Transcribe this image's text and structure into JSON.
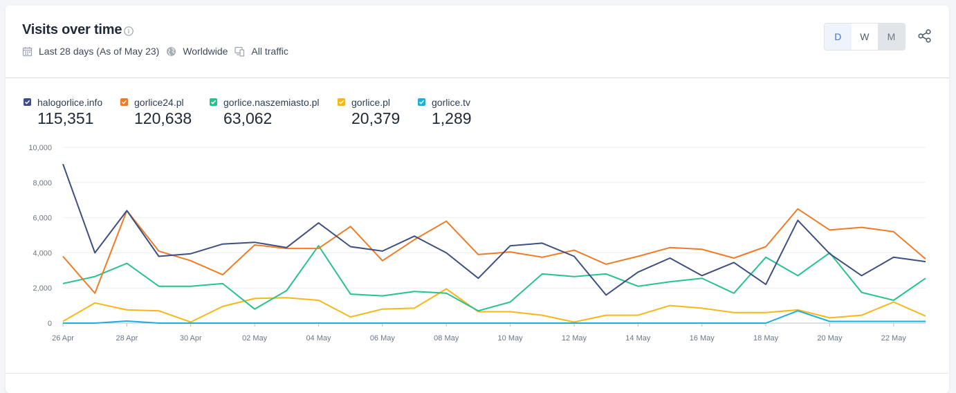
{
  "header": {
    "title": "Visits over time",
    "date_range": "Last 28 days (As of May 23)",
    "region": "Worldwide",
    "traffic": "All traffic"
  },
  "granularity": {
    "options": [
      "D",
      "W",
      "M"
    ],
    "selected": "D"
  },
  "icons": {
    "info": "info-icon",
    "calendar": "calendar-icon",
    "globe": "globe-icon",
    "devices": "devices-icon",
    "share": "share-icon"
  },
  "legend": [
    {
      "name": "halogorlice.info",
      "total": "115,351",
      "color": "#3d4f82"
    },
    {
      "name": "gorlice24.pl",
      "total": "120,638",
      "color": "#f07b24"
    },
    {
      "name": "gorlice.naszemiasto.pl",
      "total": "63,062",
      "color": "#26c28e"
    },
    {
      "name": "gorlice.pl",
      "total": "20,379",
      "color": "#f6b717"
    },
    {
      "name": "gorlice.tv",
      "total": "1,289",
      "color": "#1ab0d8"
    }
  ],
  "chart_data": {
    "type": "line",
    "x": [
      "26 Apr",
      "27 Apr",
      "28 Apr",
      "29 Apr",
      "30 Apr",
      "01 May",
      "02 May",
      "03 May",
      "04 May",
      "05 May",
      "06 May",
      "07 May",
      "08 May",
      "09 May",
      "10 May",
      "11 May",
      "12 May",
      "13 May",
      "14 May",
      "15 May",
      "16 May",
      "17 May",
      "18 May",
      "19 May",
      "20 May",
      "21 May",
      "22 May",
      "23 May"
    ],
    "xticks": [
      "26 Apr",
      "28 Apr",
      "30 Apr",
      "02 May",
      "04 May",
      "06 May",
      "08 May",
      "10 May",
      "12 May",
      "14 May",
      "16 May",
      "18 May",
      "20 May",
      "22 May"
    ],
    "yticks": [
      "0",
      "2,000",
      "4,000",
      "6,000",
      "8,000",
      "10,000"
    ],
    "ylim": [
      0,
      10000
    ],
    "grid": true,
    "series": [
      {
        "name": "halogorlice.info",
        "color": "#3d4f82",
        "values": [
          9050,
          4000,
          6400,
          3800,
          3950,
          4500,
          4600,
          4300,
          5700,
          4350,
          4100,
          4950,
          4000,
          2550,
          4400,
          4550,
          3800,
          1600,
          2900,
          3700,
          2700,
          3450,
          2200,
          5850,
          3950,
          2700,
          3750,
          3500
        ]
      },
      {
        "name": "gorlice24.pl",
        "color": "#f07b24",
        "values": [
          3800,
          1700,
          6400,
          4100,
          3550,
          2750,
          4450,
          4250,
          4250,
          5500,
          3550,
          4750,
          5800,
          3900,
          4050,
          3750,
          4150,
          3350,
          3800,
          4300,
          4200,
          3700,
          4350,
          6500,
          5300,
          5450,
          5200,
          3650
        ]
      },
      {
        "name": "gorlice.naszemiasto.pl",
        "color": "#26c28e",
        "values": [
          2250,
          2650,
          3400,
          2100,
          2100,
          2250,
          800,
          1850,
          4400,
          1650,
          1550,
          1800,
          1700,
          700,
          1200,
          2800,
          2650,
          2800,
          2100,
          2350,
          2550,
          1700,
          3750,
          2700,
          4000,
          1750,
          1300,
          2550
        ]
      },
      {
        "name": "gorlice.pl",
        "color": "#f6b717",
        "values": [
          100,
          1150,
          750,
          700,
          60,
          950,
          1400,
          1450,
          1300,
          350,
          800,
          850,
          1950,
          650,
          650,
          450,
          60,
          450,
          450,
          1000,
          850,
          600,
          600,
          750,
          300,
          450,
          1200,
          400
        ]
      },
      {
        "name": "gorlice.tv",
        "color": "#1ab0d8",
        "values": [
          0,
          0,
          120,
          0,
          0,
          0,
          0,
          0,
          0,
          0,
          0,
          0,
          0,
          0,
          0,
          0,
          0,
          0,
          0,
          0,
          0,
          0,
          0,
          700,
          100,
          100,
          100,
          100
        ]
      }
    ]
  }
}
